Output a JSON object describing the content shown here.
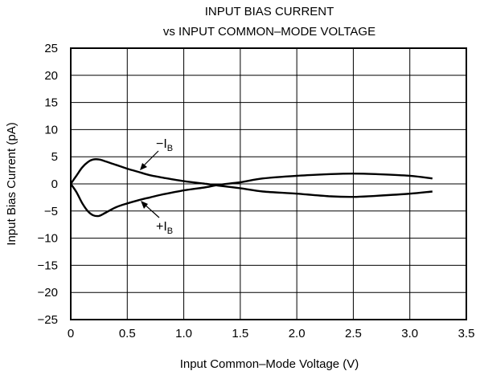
{
  "chart_data": {
    "type": "line",
    "title_lines": [
      "INPUT BIAS CURRENT",
      "vs INPUT COMMON–MODE VOLTAGE"
    ],
    "xlabel": "Input Common–Mode Voltage (V)",
    "ylabel": "Input Bias Current (pA)",
    "xlim": [
      0,
      3.5
    ],
    "ylim": [
      -25,
      25
    ],
    "x_ticks": [
      0,
      0.5,
      1.0,
      1.5,
      2.0,
      2.5,
      3.0,
      3.5
    ],
    "x_tick_labels": [
      "0",
      "0.5",
      "1.0",
      "1.5",
      "2.0",
      "2.5",
      "3.0",
      "3.5"
    ],
    "y_ticks": [
      25,
      20,
      15,
      10,
      5,
      0,
      -5,
      -10,
      -15,
      -20,
      -25
    ],
    "y_tick_labels": [
      "25",
      "20",
      "15",
      "10",
      "5",
      "0",
      "−5",
      "−10",
      "−15",
      "−20",
      "−25"
    ],
    "grid": true,
    "series": [
      {
        "name": "−IB",
        "x": [
          0,
          0.05,
          0.1,
          0.15,
          0.2,
          0.25,
          0.3,
          0.4,
          0.5,
          0.6,
          0.7,
          0.8,
          1.0,
          1.2,
          1.3,
          1.5,
          1.7,
          2.0,
          2.3,
          2.5,
          2.7,
          3.0,
          3.2
        ],
        "y": [
          0,
          1.5,
          3.0,
          4.0,
          4.5,
          4.5,
          4.2,
          3.5,
          2.8,
          2.2,
          1.6,
          1.2,
          0.5,
          0,
          -0.3,
          -0.8,
          -1.4,
          -1.8,
          -2.3,
          -2.4,
          -2.2,
          -1.8,
          -1.4
        ]
      },
      {
        "name": "+IB",
        "x": [
          0,
          0.05,
          0.1,
          0.15,
          0.2,
          0.25,
          0.3,
          0.4,
          0.5,
          0.6,
          0.7,
          0.8,
          1.0,
          1.2,
          1.3,
          1.5,
          1.7,
          2.0,
          2.3,
          2.5,
          2.7,
          3.0,
          3.2
        ],
        "y": [
          0,
          -1.5,
          -3.5,
          -5.0,
          -5.8,
          -5.9,
          -5.4,
          -4.3,
          -3.6,
          -3.0,
          -2.5,
          -2.0,
          -1.2,
          -0.6,
          -0.2,
          0.3,
          1.0,
          1.5,
          1.8,
          1.9,
          1.8,
          1.5,
          1.0
        ]
      }
    ],
    "annotations": [
      {
        "sign": "−",
        "main": "I",
        "sub": "B"
      },
      {
        "sign": "+",
        "main": "I",
        "sub": "B"
      }
    ]
  }
}
